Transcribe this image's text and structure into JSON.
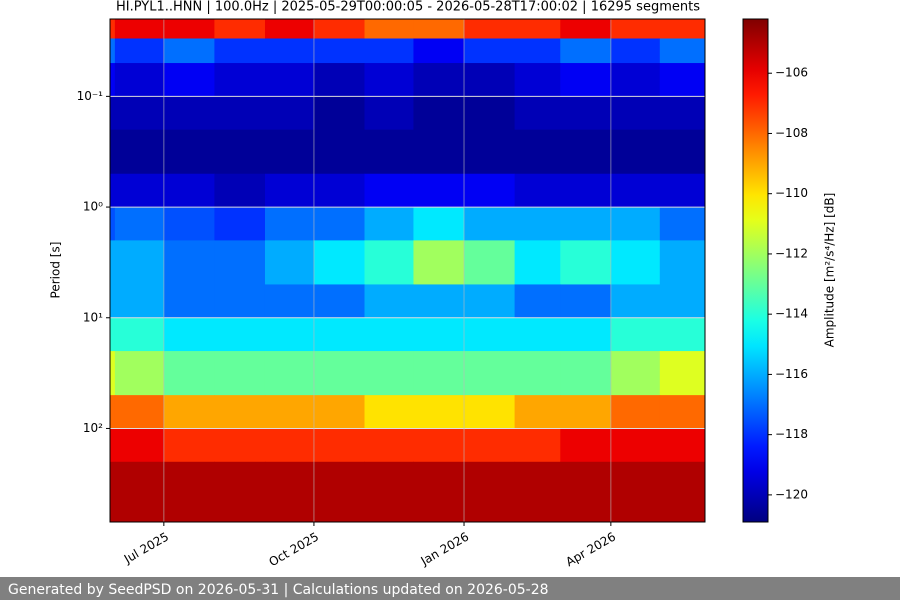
{
  "chart_data": {
    "type": "spectrogram",
    "title": "HI.PYL1..HNN | 100.0Hz | 2025-05-29T00:00:05 - 2026-05-28T17:00:02 | 16295 segments",
    "ylabel": "Period [s]",
    "colorbar_label": "Amplitude [m²/s⁴/Hz] [dB]",
    "footer": "Generated by SeedPSD on 2026-05-31 | Calculations updated on 2026-05-28",
    "xlim": [
      "2025-05-29T00:00:05",
      "2026-05-28T17:00:02"
    ],
    "xticks": [
      {
        "value": "2025-07",
        "label": "Jul 2025"
      },
      {
        "value": "2025-10",
        "label": "Oct 2025"
      },
      {
        "value": "2026-01",
        "label": "Jan 2026"
      },
      {
        "value": "2026-04",
        "label": "Apr 2026"
      }
    ],
    "ylim": [
      0.02,
      700
    ],
    "y_log": true,
    "y_inverted": true,
    "yticks": [
      {
        "value": 0.1,
        "label": "10⁻¹"
      },
      {
        "value": 1,
        "label": "10⁰"
      },
      {
        "value": 10,
        "label": "10¹"
      },
      {
        "value": 100,
        "label": "10²"
      }
    ],
    "grid": true,
    "colormap": "jet",
    "clim": [
      -120.9,
      -104.2
    ],
    "cticks": [
      {
        "value": -106,
        "label": "−106"
      },
      {
        "value": -108,
        "label": "−108"
      },
      {
        "value": -110,
        "label": "−110"
      },
      {
        "value": -112,
        "label": "−112"
      },
      {
        "value": -114,
        "label": "−114"
      },
      {
        "value": -116,
        "label": "−116"
      },
      {
        "value": -118,
        "label": "−118"
      },
      {
        "value": -120,
        "label": "−120"
      }
    ],
    "time_bins": [
      "2025-05-29T00:00:05",
      "2025-06",
      "2025-07",
      "2025-08",
      "2025-09",
      "2025-10",
      "2025-11",
      "2025-12",
      "2026-01",
      "2026-02",
      "2026-03",
      "2026-04",
      "2026-05",
      "2026-05-28T17:00:02"
    ],
    "period_bins": [
      0.02,
      0.03,
      0.05,
      0.1,
      0.2,
      0.5,
      1,
      2,
      5,
      10,
      20,
      50,
      100,
      200,
      700
    ],
    "z": [
      [
        -107,
        -106,
        -106,
        -107,
        -106,
        -107,
        -108,
        -108,
        -107,
        -107,
        -106,
        -107,
        -107
      ],
      [
        -117,
        -118,
        -117,
        -118,
        -118,
        -118,
        -118,
        -119,
        -118,
        -118,
        -117,
        -118,
        -117
      ],
      [
        -119,
        -119.5,
        -119,
        -119.5,
        -119.5,
        -120,
        -119.5,
        -120,
        -120,
        -119.5,
        -119,
        -119.5,
        -119
      ],
      [
        -120,
        -120,
        -120,
        -120,
        -120,
        -120.5,
        -120,
        -120.5,
        -120.5,
        -120,
        -120,
        -120,
        -120
      ],
      [
        -120.5,
        -120.5,
        -120.5,
        -120.5,
        -120.5,
        -120.5,
        -120.5,
        -120.5,
        -120.5,
        -120.5,
        -120.5,
        -120.5,
        -120.5
      ],
      [
        -119.5,
        -119.5,
        -119.5,
        -120,
        -119.5,
        -119.5,
        -119,
        -119,
        -119,
        -119.5,
        -119.5,
        -119.5,
        -119.5
      ],
      [
        -117.5,
        -117,
        -117.5,
        -118,
        -117,
        -117,
        -116,
        -115,
        -116,
        -116,
        -116,
        -116,
        -117
      ],
      [
        -116,
        -116,
        -117,
        -117,
        -116,
        -115,
        -114,
        -112,
        -113,
        -115,
        -114,
        -115,
        -116
      ],
      [
        -116,
        -116,
        -117,
        -117,
        -117,
        -117,
        -116,
        -116,
        -116,
        -117,
        -117,
        -116,
        -116
      ],
      [
        -114,
        -114,
        -115,
        -115,
        -115,
        -115,
        -115,
        -115,
        -115,
        -115,
        -115,
        -114,
        -114
      ],
      [
        -111,
        -112,
        -113,
        -113,
        -113,
        -113,
        -113,
        -113,
        -113,
        -113,
        -113,
        -112,
        -111
      ],
      [
        -108,
        -108,
        -109,
        -109,
        -109,
        -109,
        -110,
        -110,
        -110,
        -109,
        -109,
        -108,
        -108
      ],
      [
        -106,
        -106,
        -107,
        -107,
        -107,
        -107,
        -107,
        -107,
        -107,
        -107,
        -106,
        -106,
        -106
      ],
      [
        -105,
        -105,
        -105,
        -105,
        -105,
        -105,
        -105,
        -105,
        -105,
        -105,
        -105,
        -105,
        -105
      ]
    ]
  }
}
